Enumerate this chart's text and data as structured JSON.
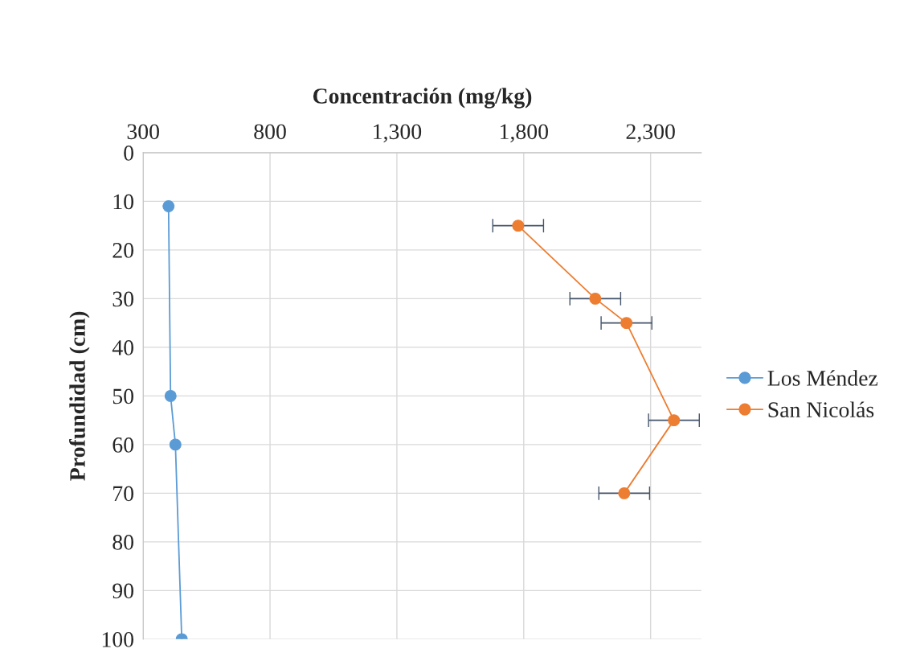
{
  "chart_data": {
    "type": "line",
    "xlabel": "Concentración (mg/kg)",
    "ylabel": "Profundidad (cm)",
    "xlim": [
      300,
      2500
    ],
    "xticks": [
      300,
      800,
      {
        "value": 1300,
        "label": "1,300"
      },
      {
        "value": 1800,
        "label": "1,800"
      },
      {
        "value": 2300,
        "label": "2,300"
      }
    ],
    "ylim": [
      100,
      0
    ],
    "yticks": [
      0,
      10,
      20,
      30,
      40,
      50,
      60,
      70,
      80,
      90,
      100
    ],
    "grid": true,
    "legend": "right",
    "marker": "circle",
    "line_style": "solid",
    "series": [
      {
        "name": "Los Méndez",
        "color": "#5b9bd5",
        "x": [
          400,
          408,
          427,
          452
        ],
        "values": [
          11,
          50,
          60,
          100
        ]
      },
      {
        "name": "San Nicolás",
        "color": "#ed7d31",
        "x": [
          1778,
          2082,
          2205,
          2392,
          2196
        ],
        "values": [
          15,
          30,
          35,
          55,
          70
        ],
        "xerrors": [
          100,
          100,
          100,
          100,
          100
        ]
      }
    ]
  }
}
